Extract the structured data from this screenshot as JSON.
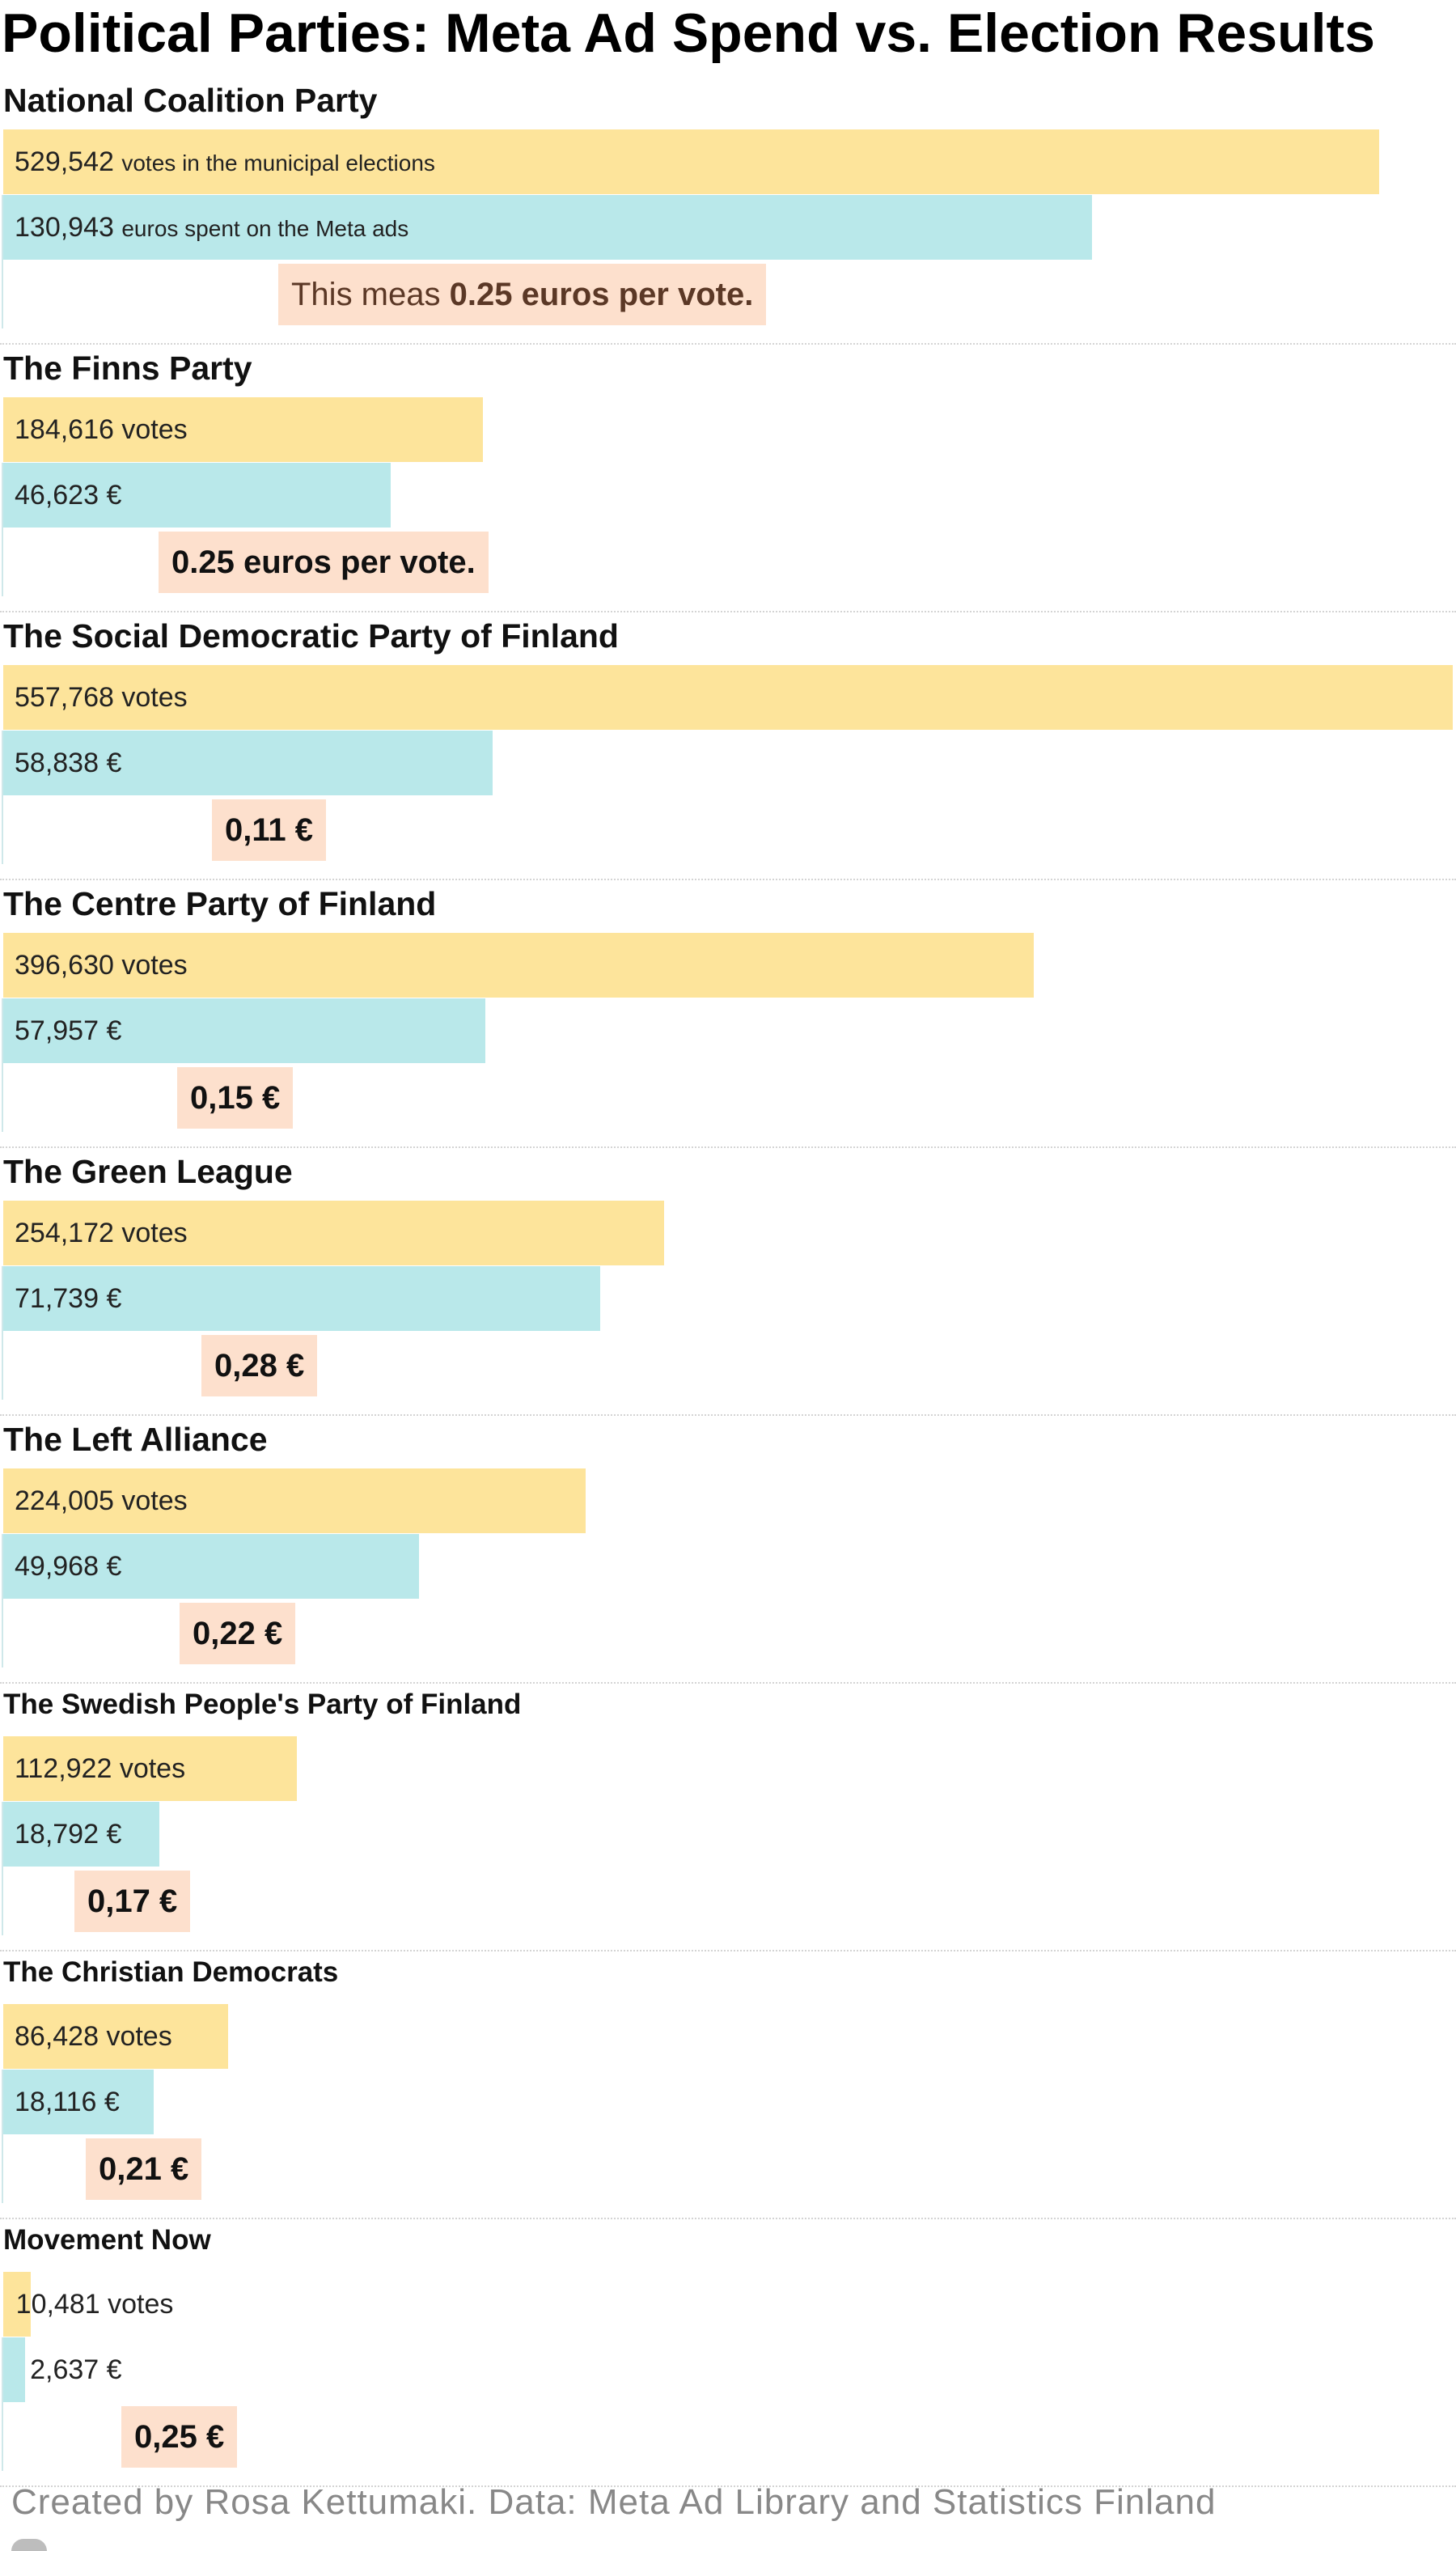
{
  "title": "Political Parties: Meta Ad Spend vs. Election Results",
  "footer": "Created by Rosa Kettumaki. Data: Meta Ad Library and Statistics Finland",
  "colors": {
    "votes_bar": "#fde49b",
    "spend_bar": "#b9e8ea",
    "ratio_box": "#fde0cd"
  },
  "chart_data": {
    "type": "bar",
    "title": "Political Parties: Meta Ad Spend vs. Election Results",
    "categories": [
      "National Coalition Party",
      "The Finns Party",
      "The Social Democratic Party of Finland",
      "The Centre Party of Finland",
      "The Green League",
      "The Left Alliance",
      "The Swedish People's Party of Finland",
      "The Christian Democrats",
      "Movement Now"
    ],
    "series": [
      {
        "name": "votes",
        "values": [
          529542,
          184616,
          557768,
          396630,
          254172,
          224005,
          112922,
          86428,
          10481
        ]
      },
      {
        "name": "euros spent on the Meta ads",
        "values": [
          130943,
          46623,
          58838,
          57957,
          71739,
          49968,
          18792,
          18116,
          2637
        ]
      }
    ],
    "parties": [
      {
        "name": "National Coalition Party",
        "votes": 529542,
        "spend": 130943,
        "votes_label": "529,542",
        "votes_suffix": "votes in the municipal elections",
        "spend_label": "130,943",
        "spend_suffix": "euros spent on the Meta ads",
        "ratio_prefix": "This meas",
        "ratio": "0.25 euros per vote."
      },
      {
        "name": "The Finns Party",
        "votes": 184616,
        "spend": 46623,
        "votes_label": "184,616 votes",
        "votes_suffix": "",
        "spend_label": "46,623 €",
        "spend_suffix": "",
        "ratio_prefix": "",
        "ratio": "0.25 euros per vote."
      },
      {
        "name": "The Social Democratic Party of Finland",
        "votes": 557768,
        "spend": 58838,
        "votes_label": "557,768 votes",
        "votes_suffix": "",
        "spend_label": "58,838 €",
        "spend_suffix": "",
        "ratio_prefix": "",
        "ratio": "0,11 €"
      },
      {
        "name": "The Centre Party of Finland",
        "votes": 396630,
        "spend": 57957,
        "votes_label": "396,630 votes",
        "votes_suffix": "",
        "spend_label": "57,957 €",
        "spend_suffix": "",
        "ratio_prefix": "",
        "ratio": "0,15 €"
      },
      {
        "name": "The Green League",
        "votes": 254172,
        "spend": 71739,
        "votes_label": "254,172 votes",
        "votes_suffix": "",
        "spend_label": "71,739 €",
        "spend_suffix": "",
        "ratio_prefix": "",
        "ratio": "0,28 €"
      },
      {
        "name": "The Left Alliance",
        "votes": 224005,
        "spend": 49968,
        "votes_label": "224,005 votes",
        "votes_suffix": "",
        "spend_label": "49,968 €",
        "spend_suffix": "",
        "ratio_prefix": "",
        "ratio": "0,22 €"
      },
      {
        "name": "The Swedish People's Party of Finland",
        "votes": 112922,
        "spend": 18792,
        "votes_label": "112,922 votes",
        "votes_suffix": "",
        "spend_label": "18,792 €",
        "spend_suffix": "",
        "ratio_prefix": "",
        "ratio": "0,17 €"
      },
      {
        "name": "The Christian Democrats",
        "votes": 86428,
        "spend": 18116,
        "votes_label": "86,428 votes",
        "votes_suffix": "",
        "spend_label": "18,116 €",
        "spend_suffix": "",
        "ratio_prefix": "",
        "ratio": "0,21 €"
      },
      {
        "name": "Movement Now",
        "votes": 10481,
        "spend": 2637,
        "votes_label": "10,481 votes",
        "votes_suffix": "",
        "spend_label": "2,637 €",
        "spend_suffix": "",
        "ratio_prefix": "",
        "ratio": "0,25 €"
      }
    ]
  }
}
